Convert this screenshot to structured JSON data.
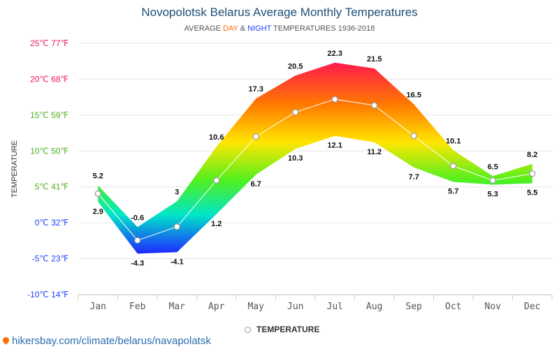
{
  "header": {
    "title": "Novopolotsk Belarus Average Monthly Temperatures",
    "subtitle_prefix": "AVERAGE ",
    "subtitle_day": "DAY",
    "subtitle_amp": " & ",
    "subtitle_night": "NIGHT",
    "subtitle_suffix": " TEMPERATURES 1936-2018"
  },
  "legend": {
    "label": "TEMPERATURE"
  },
  "source": {
    "text": "hikersbay.com/climate/belarus/navapolatsk"
  },
  "colors": {
    "day_accent": "#ff6a00",
    "night_accent": "#1e40ff",
    "title": "#1f4e79"
  },
  "chart_data": {
    "type": "area",
    "ylabel": "TEMPERATURE",
    "categories": [
      "Jan",
      "Feb",
      "Mar",
      "Apr",
      "May",
      "Jun",
      "Jul",
      "Aug",
      "Sep",
      "Oct",
      "Nov",
      "Dec"
    ],
    "ylim": [
      -10,
      25
    ],
    "y_ticks": [
      {
        "value": 25,
        "label": "25℃ 77℉",
        "color": "#e8175d"
      },
      {
        "value": 20,
        "label": "20℃ 68℉",
        "color": "#e8175d"
      },
      {
        "value": 15,
        "label": "15℃ 59℉",
        "color": "#4caf1e"
      },
      {
        "value": 10,
        "label": "10℃ 50℉",
        "color": "#4caf1e"
      },
      {
        "value": 5,
        "label": "5℃ 41℉",
        "color": "#4caf1e"
      },
      {
        "value": 0,
        "label": "0℃ 32℉",
        "color": "#1e40ff"
      },
      {
        "value": -5,
        "label": "-5℃ 23℉",
        "color": "#1e40ff"
      },
      {
        "value": -10,
        "label": "-10℃ 14℉",
        "color": "#1e40ff"
      }
    ],
    "grid": true,
    "legend_position": "bottom-center",
    "series": [
      {
        "name": "DAY",
        "values": [
          5.2,
          -0.6,
          3,
          10.6,
          17.3,
          20.5,
          22.3,
          21.5,
          16.5,
          10.1,
          6.5,
          8.2
        ]
      },
      {
        "name": "NIGHT",
        "values": [
          2.9,
          -4.3,
          -4.1,
          1.2,
          6.7,
          10.3,
          12.1,
          11.2,
          7.7,
          5.7,
          5.3,
          5.5
        ]
      },
      {
        "name": "TEMPERATURE",
        "values": [
          4.05,
          -2.45,
          -0.55,
          5.9,
          12.0,
          15.4,
          17.2,
          16.35,
          12.1,
          7.9,
          5.9,
          6.85
        ]
      }
    ]
  }
}
